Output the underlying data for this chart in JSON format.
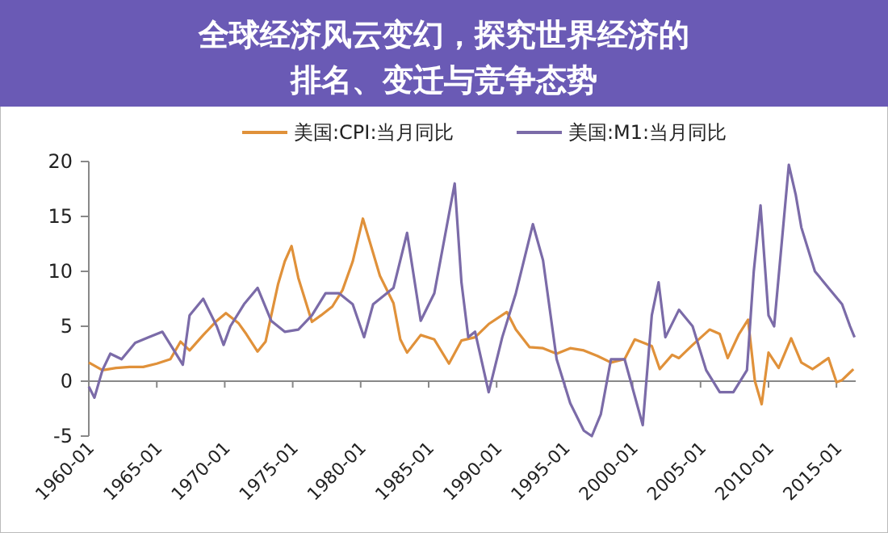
{
  "chart_data": {
    "type": "line",
    "title": "全球经济风云变幻，探究世界经济的排名、变迁与竞争态势",
    "xlim": [
      "1960-01",
      "2016-06"
    ],
    "xticks": [
      {
        "value": "1960-01",
        "label": "1960-01"
      },
      {
        "value": "1965-01",
        "label": "1965-01"
      },
      {
        "value": "1970-01",
        "label": "1970-01"
      },
      {
        "value": "1975-01",
        "label": "1975-01"
      },
      {
        "value": "1980-01",
        "label": "1980-01"
      },
      {
        "value": "1985-01",
        "label": "1985-01"
      },
      {
        "value": "1990-01",
        "label": "1990-01"
      },
      {
        "value": "1995-01",
        "label": "1995-01"
      },
      {
        "value": "2000-01",
        "label": "2000-01"
      },
      {
        "value": "2005-01",
        "label": "2005-01"
      },
      {
        "value": "2010-01",
        "label": "2010-01"
      },
      {
        "value": "2015-01",
        "label": "2015-01"
      }
    ],
    "ylim": [
      -5,
      20
    ],
    "yticks": [
      -5,
      0,
      5,
      10,
      15,
      20
    ],
    "legend": "top",
    "series": [
      {
        "name": "美国:CPI:当月同比",
        "color": "#e0913a",
        "x": [
          "1960-01",
          "1961-01",
          "1962-01",
          "1963-01",
          "1964-01",
          "1965-01",
          "1966-01",
          "1966-10",
          "1967-06",
          "1968-06",
          "1969-06",
          "1970-02",
          "1971-01",
          "1971-08",
          "1972-06",
          "1973-01",
          "1973-12",
          "1974-06",
          "1974-12",
          "1975-06",
          "1976-06",
          "1977-02",
          "1977-12",
          "1978-09",
          "1979-06",
          "1980-03",
          "1980-09",
          "1981-06",
          "1982-06",
          "1982-12",
          "1983-06",
          "1984-06",
          "1985-06",
          "1986-07",
          "1987-06",
          "1988-06",
          "1989-06",
          "1990-10",
          "1991-06",
          "1992-06",
          "1993-06",
          "1994-06",
          "1995-06",
          "1996-06",
          "1997-06",
          "1998-06",
          "1999-06",
          "2000-03",
          "2001-06",
          "2002-01",
          "2002-12",
          "2003-06",
          "2004-06",
          "2005-09",
          "2006-06",
          "2007-01",
          "2007-11",
          "2008-07",
          "2009-01",
          "2009-07",
          "2010-01",
          "2010-10",
          "2011-09",
          "2012-06",
          "2013-04",
          "2014-06",
          "2015-01",
          "2015-06",
          "2015-12",
          "2016-04"
        ],
        "values": [
          1.7,
          1.0,
          1.2,
          1.3,
          1.3,
          1.6,
          2.0,
          3.6,
          2.8,
          4.2,
          5.5,
          6.2,
          5.3,
          4.3,
          2.7,
          3.6,
          8.8,
          10.9,
          12.3,
          9.4,
          5.4,
          6.0,
          6.8,
          8.3,
          10.9,
          14.8,
          12.7,
          9.6,
          7.1,
          3.8,
          2.6,
          4.2,
          3.8,
          1.6,
          3.7,
          4.0,
          5.2,
          6.3,
          4.7,
          3.1,
          3.0,
          2.5,
          3.0,
          2.8,
          2.3,
          1.7,
          2.0,
          3.8,
          3.2,
          1.1,
          2.4,
          2.1,
          3.3,
          4.7,
          4.3,
          2.1,
          4.3,
          5.6,
          0.0,
          -2.1,
          2.6,
          1.2,
          3.9,
          1.7,
          1.1,
          2.1,
          -0.1,
          0.1,
          0.7,
          1.1
        ]
      },
      {
        "name": "美国:M1:当月同比",
        "color": "#7b6ba8",
        "x": [
          "1960-01",
          "1960-06",
          "1961-01",
          "1961-08",
          "1962-06",
          "1963-06",
          "1964-06",
          "1965-06",
          "1966-03",
          "1966-12",
          "1967-06",
          "1968-06",
          "1969-06",
          "1969-12",
          "1970-06",
          "1971-06",
          "1972-06",
          "1973-06",
          "1974-06",
          "1975-06",
          "1976-06",
          "1977-06",
          "1978-06",
          "1979-06",
          "1980-04",
          "1980-12",
          "1981-06",
          "1982-06",
          "1983-06",
          "1984-06",
          "1985-06",
          "1986-12",
          "1987-06",
          "1987-12",
          "1988-06",
          "1989-06",
          "1990-06",
          "1991-06",
          "1992-09",
          "1993-06",
          "1994-06",
          "1995-06",
          "1996-06",
          "1997-01",
          "1997-09",
          "1998-06",
          "1999-06",
          "2000-10",
          "2001-06",
          "2001-12",
          "2002-06",
          "2003-06",
          "2004-06",
          "2005-06",
          "2006-06",
          "2007-06",
          "2008-06",
          "2008-12",
          "2009-06",
          "2010-01",
          "2010-06",
          "2011-07",
          "2012-01",
          "2012-06",
          "2013-06",
          "2014-06",
          "2015-06",
          "2016-01",
          "2016-05"
        ],
        "values": [
          -0.5,
          -1.5,
          1.0,
          2.5,
          2.0,
          3.5,
          4.0,
          4.5,
          3.0,
          1.5,
          6.0,
          7.5,
          5.0,
          3.3,
          5.0,
          7.0,
          8.5,
          5.5,
          4.5,
          4.7,
          6.0,
          8.0,
          8.0,
          7.0,
          4.0,
          7.0,
          7.5,
          8.5,
          13.5,
          5.5,
          8.0,
          18.0,
          9.0,
          4.0,
          4.5,
          -1.0,
          4.0,
          8.0,
          14.3,
          11.0,
          2.0,
          -2.0,
          -4.5,
          -5.0,
          -3.0,
          2.0,
          2.0,
          -4.0,
          6.0,
          9.0,
          4.0,
          6.5,
          5.0,
          1.0,
          -1.0,
          -1.0,
          1.0,
          10.0,
          16.0,
          6.0,
          5.0,
          19.7,
          17.0,
          14.0,
          10.0,
          8.5,
          7.0,
          5.0,
          4.0
        ]
      }
    ]
  }
}
